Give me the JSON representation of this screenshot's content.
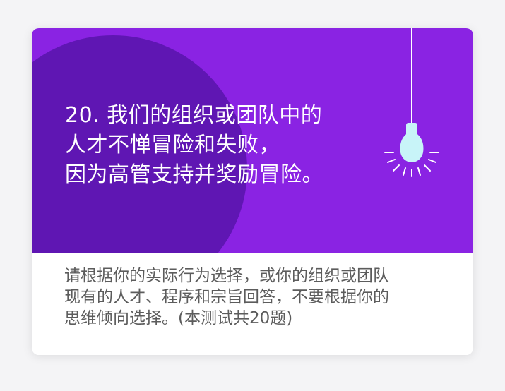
{
  "question": {
    "lines": [
      "20. 我们的组织或团队中的",
      "人才不惮冒险和失败，",
      "因为高管支持并奖励冒险。"
    ]
  },
  "instructions": {
    "lines": [
      "请根据你的实际行为选择，或你的组织或团队",
      "现有的人才、程序和宗旨回答，不要根据你的",
      "思维倾向选择。(本测试共20题)"
    ]
  },
  "colors": {
    "hero_background": "#8a23e3",
    "hero_circle": "#5f16b3",
    "bulb_glow": "#c8f4f8",
    "text_dark": "#5c5c5c"
  },
  "icons": {
    "bulb": "light-bulb-icon"
  }
}
